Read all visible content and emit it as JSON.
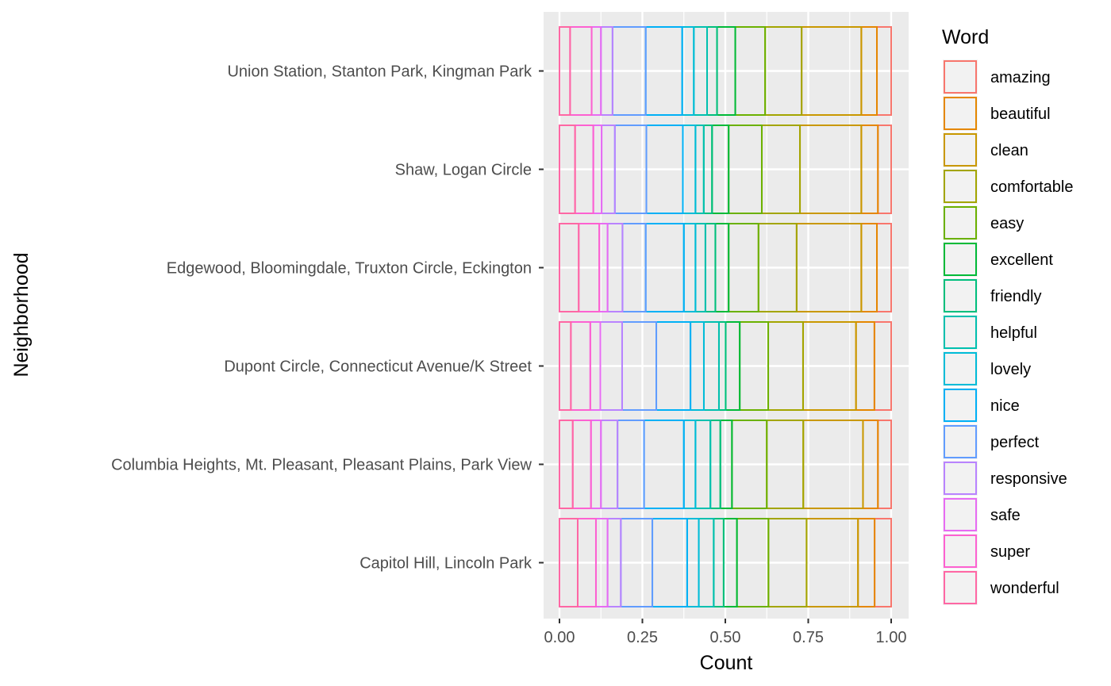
{
  "chart_data": {
    "type": "bar",
    "orientation": "horizontal",
    "stacked": "fill",
    "xlabel": "Count",
    "ylabel": "Neighborhood",
    "xlim": [
      0,
      1
    ],
    "x_ticks": [
      "0.00",
      "0.25",
      "0.50",
      "0.75",
      "1.00"
    ],
    "grid": true,
    "legend": {
      "title": "Word",
      "placement": "right"
    },
    "categories": [
      "Union Station, Stanton Park, Kingman Park",
      "Shaw, Logan Circle",
      "Edgewood, Bloomingdale, Truxton Circle, Eckington",
      "Dupont Circle, Connecticut Avenue/K Street",
      "Columbia Heights, Mt. Pleasant, Pleasant Plains, Park View",
      "Capitol Hill, Lincoln Park"
    ],
    "series": [
      {
        "name": "amazing",
        "color": "#F8766D",
        "values": [
          0.043,
          0.04,
          0.043,
          0.05,
          0.04,
          0.05
        ]
      },
      {
        "name": "beautiful",
        "color": "#E58700",
        "values": [
          0.047,
          0.05,
          0.047,
          0.055,
          0.045,
          0.05
        ]
      },
      {
        "name": "clean",
        "color": "#C99800",
        "values": [
          0.18,
          0.185,
          0.195,
          0.158,
          0.18,
          0.155
        ]
      },
      {
        "name": "comfortable",
        "color": "#A3A500",
        "values": [
          0.11,
          0.115,
          0.115,
          0.104,
          0.11,
          0.115
        ]
      },
      {
        "name": "easy",
        "color": "#6BB100",
        "values": [
          0.09,
          0.1,
          0.09,
          0.085,
          0.105,
          0.095
        ]
      },
      {
        "name": "excellent",
        "color": "#00BA38",
        "values": [
          0.055,
          0.05,
          0.04,
          0.042,
          0.035,
          0.04
        ]
      },
      {
        "name": "friendly",
        "color": "#00BF7D",
        "values": [
          0.03,
          0.025,
          0.03,
          0.02,
          0.03,
          0.03
        ]
      },
      {
        "name": "helpful",
        "color": "#00C0AF",
        "values": [
          0.04,
          0.025,
          0.03,
          0.045,
          0.045,
          0.045
        ]
      },
      {
        "name": "lovely",
        "color": "#00BCD8",
        "values": [
          0.035,
          0.038,
          0.035,
          0.04,
          0.035,
          0.035
        ]
      },
      {
        "name": "nice",
        "color": "#00B0F6",
        "values": [
          0.11,
          0.11,
          0.115,
          0.102,
          0.12,
          0.105
        ]
      },
      {
        "name": "perfect",
        "color": "#619CFF",
        "values": [
          0.1,
          0.095,
          0.07,
          0.102,
          0.08,
          0.095
        ]
      },
      {
        "name": "responsive",
        "color": "#B983FF",
        "values": [
          0.035,
          0.04,
          0.045,
          0.065,
          0.05,
          0.04
        ]
      },
      {
        "name": "safe",
        "color": "#E76BF3",
        "values": [
          0.028,
          0.025,
          0.025,
          0.03,
          0.03,
          0.035
        ]
      },
      {
        "name": "super",
        "color": "#FD61D1",
        "values": [
          0.065,
          0.055,
          0.062,
          0.058,
          0.055,
          0.055
        ]
      },
      {
        "name": "wonderful",
        "color": "#FF67A4",
        "values": [
          0.032,
          0.047,
          0.058,
          0.034,
          0.04,
          0.055
        ]
      }
    ]
  }
}
